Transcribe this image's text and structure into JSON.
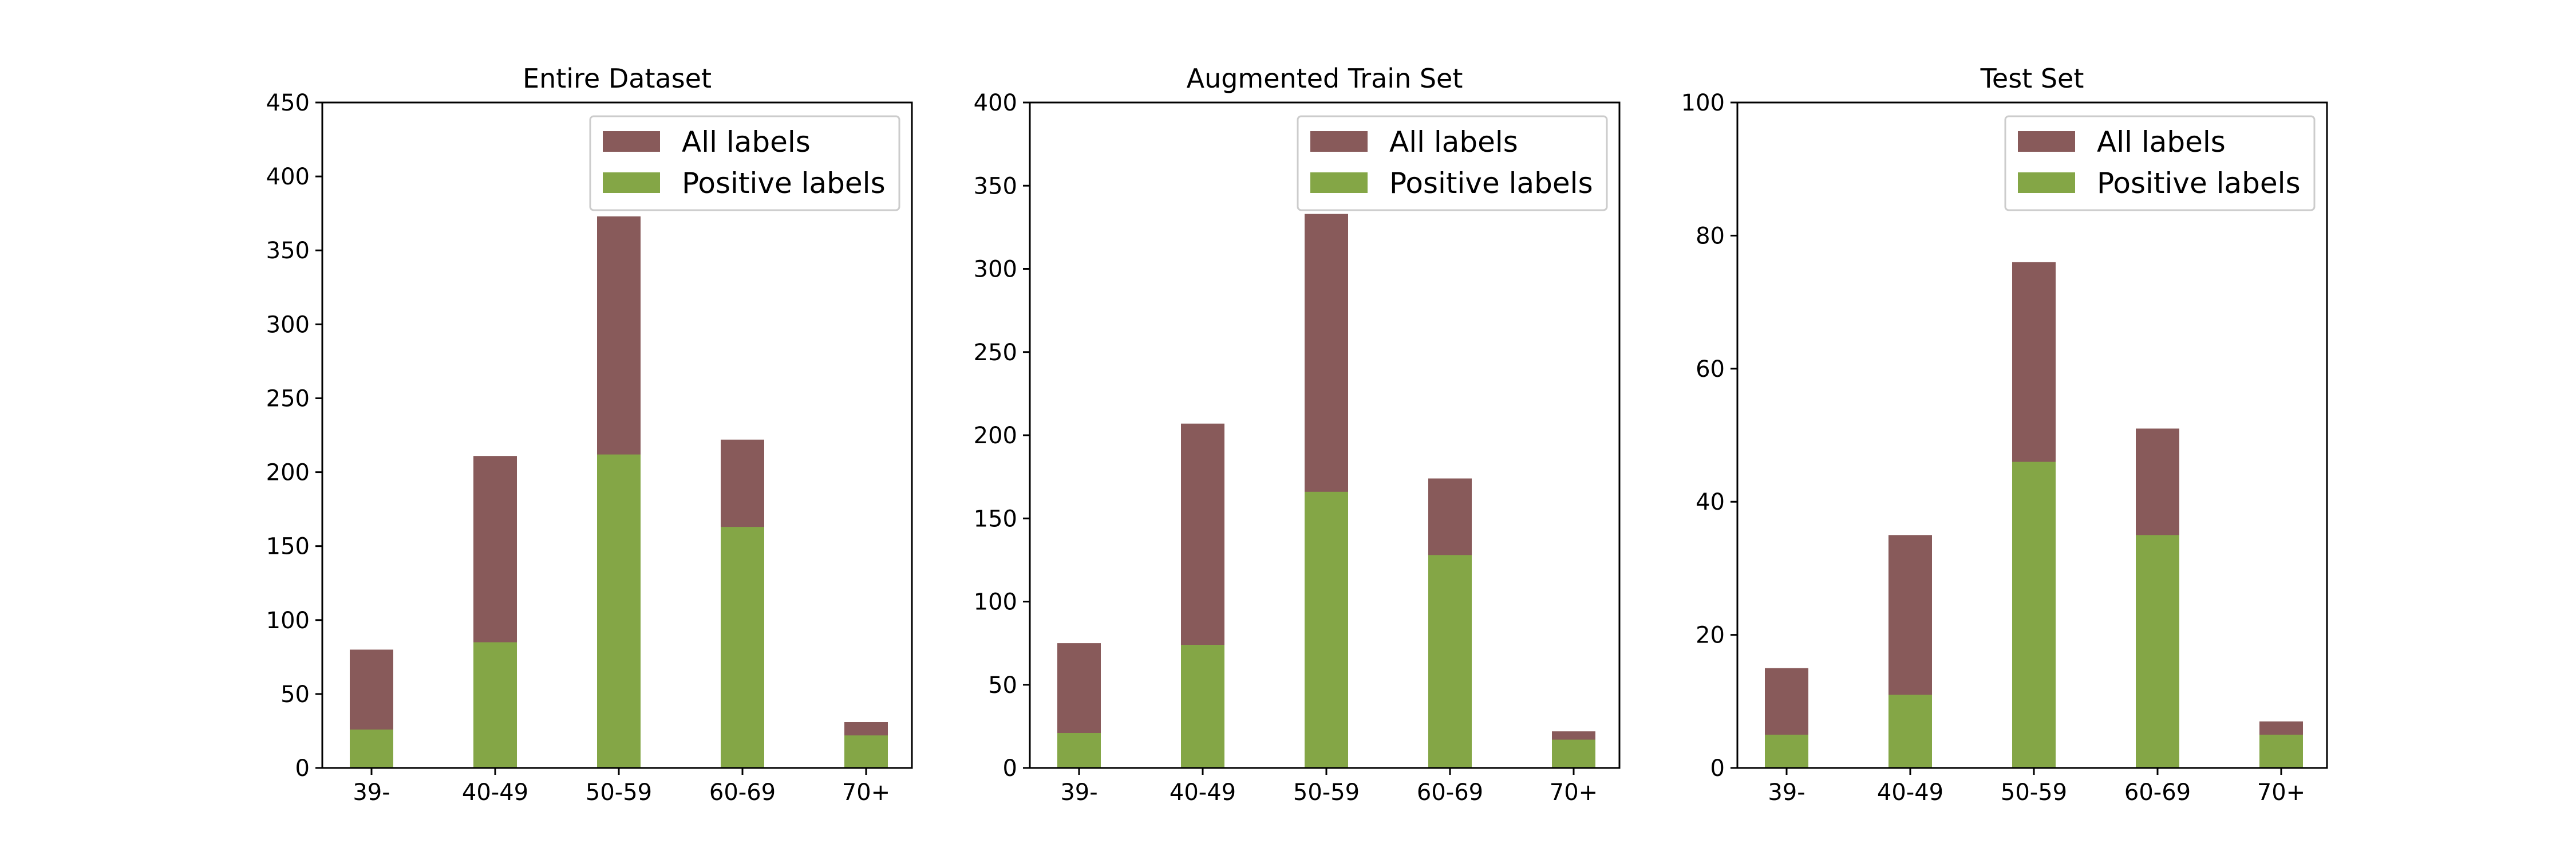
{
  "colors": {
    "all_labels": "#885a5a",
    "positive_labels": "#84a646",
    "axis": "#000000",
    "background": "#ffffff"
  },
  "chart_data": [
    {
      "type": "bar",
      "stacking": "overlay",
      "title": "Entire Dataset",
      "xlabel": "",
      "ylabel": "",
      "categories": [
        "39-",
        "40-49",
        "50-59",
        "60-69",
        "70+"
      ],
      "ylim": [
        0,
        450
      ],
      "yticks": [
        0,
        50,
        100,
        150,
        200,
        250,
        300,
        350,
        400,
        450
      ],
      "grid": false,
      "legend_position": "top-right",
      "series": [
        {
          "name": "All labels",
          "values": [
            80,
            211,
            373,
            222,
            31
          ]
        },
        {
          "name": "Positive labels",
          "values": [
            26,
            85,
            212,
            163,
            22
          ]
        }
      ]
    },
    {
      "type": "bar",
      "stacking": "overlay",
      "title": "Augmented Train Set",
      "xlabel": "",
      "ylabel": "",
      "categories": [
        "39-",
        "40-49",
        "50-59",
        "60-69",
        "70+"
      ],
      "ylim": [
        0,
        400
      ],
      "yticks": [
        0,
        50,
        100,
        150,
        200,
        250,
        300,
        350,
        400
      ],
      "grid": false,
      "legend_position": "top-right",
      "series": [
        {
          "name": "All labels",
          "values": [
            75,
            207,
            333,
            174,
            22
          ]
        },
        {
          "name": "Positive labels",
          "values": [
            21,
            74,
            166,
            128,
            17
          ]
        }
      ]
    },
    {
      "type": "bar",
      "stacking": "overlay",
      "title": "Test Set",
      "xlabel": "",
      "ylabel": "",
      "categories": [
        "39-",
        "40-49",
        "50-59",
        "60-69",
        "70+"
      ],
      "ylim": [
        0,
        100
      ],
      "yticks": [
        0,
        20,
        40,
        60,
        80,
        100
      ],
      "grid": false,
      "legend_position": "top-right",
      "series": [
        {
          "name": "All labels",
          "values": [
            15,
            35,
            76,
            51,
            7
          ]
        },
        {
          "name": "Positive labels",
          "values": [
            5,
            11,
            46,
            35,
            5
          ]
        }
      ]
    }
  ]
}
